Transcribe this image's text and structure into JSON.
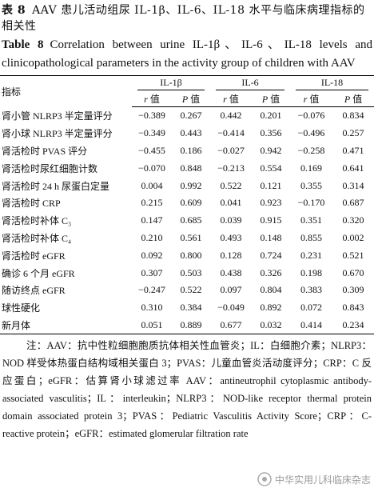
{
  "caption_cn": {
    "label": "表 8",
    "text": "AAV 患儿活动组尿 IL-1β、IL-6、IL-18 水平与临床病理指标的相关性"
  },
  "caption_en": {
    "label": "Table 8",
    "text": "Correlation between urine IL-1β、IL-6、IL-18 levels and clinicopathological parameters in the activity group of children with AAV"
  },
  "table": {
    "row_header": "指标",
    "groups": [
      "IL-1β",
      "IL-6",
      "IL-18"
    ],
    "stats": [
      "r",
      "P"
    ],
    "stat_suffix": "值",
    "rows": [
      [
        "肾小管 NLRP3 半定量评分",
        "−0.389",
        "0.267",
        "0.442",
        "0.201",
        "−0.076",
        "0.834"
      ],
      [
        "肾小球 NLRP3 半定量评分",
        "−0.349",
        "0.443",
        "−0.414",
        "0.356",
        "−0.496",
        "0.257"
      ],
      [
        "肾活检时 PVAS 评分",
        "−0.455",
        "0.186",
        "−0.027",
        "0.942",
        "−0.258",
        "0.471"
      ],
      [
        "肾活检时尿红细胞计数",
        "−0.070",
        "0.848",
        "−0.213",
        "0.554",
        "0.169",
        "0.641"
      ],
      [
        "肾活检时 24 h 尿蛋白定量",
        "0.004",
        "0.992",
        "0.522",
        "0.121",
        "0.355",
        "0.314"
      ],
      [
        "肾活检时 CRP",
        "0.215",
        "0.609",
        "0.041",
        "0.923",
        "−0.170",
        "0.687"
      ],
      [
        "肾活检时补体 C₃",
        "0.147",
        "0.685",
        "0.039",
        "0.915",
        "0.351",
        "0.320"
      ],
      [
        "肾活检时补体 C₄",
        "0.210",
        "0.561",
        "0.493",
        "0.148",
        "0.855",
        "0.002"
      ],
      [
        "肾活检时 eGFR",
        "0.092",
        "0.800",
        "0.128",
        "0.724",
        "0.231",
        "0.521"
      ],
      [
        "确诊 6 个月 eGFR",
        "0.307",
        "0.503",
        "0.438",
        "0.326",
        "0.198",
        "0.670"
      ],
      [
        "随访终点 eGFR",
        "−0.247",
        "0.522",
        "0.097",
        "0.804",
        "0.383",
        "0.309"
      ],
      [
        "球性硬化",
        "0.310",
        "0.384",
        "−0.049",
        "0.892",
        "0.072",
        "0.843"
      ],
      [
        "新月体",
        "0.051",
        "0.889",
        "0.677",
        "0.032",
        "0.414",
        "0.234"
      ]
    ]
  },
  "notes": {
    "cn": "注：AAV：抗中性粒细胞胞质抗体相关性血管炎；IL：白细胞介素；NLRP3：NOD 样受体热蛋白结构域相关蛋白 3；PVAS：儿童血管炎活动度评分；CRP：C 反应蛋白；eGFR：估算肾小球滤过率",
    "en": "AAV：antineutrophil cytoplasmic antibody-associated vasculitis；IL：interleukin；NLRP3：NOD-like receptor thermal protein domain associated protein 3；PVAS：Pediatric Vasculitis Activity Score；CRP：C-reactive protein；eGFR：estimated glomerular filtration rate"
  },
  "watermark": "中华实用儿科临床杂志"
}
